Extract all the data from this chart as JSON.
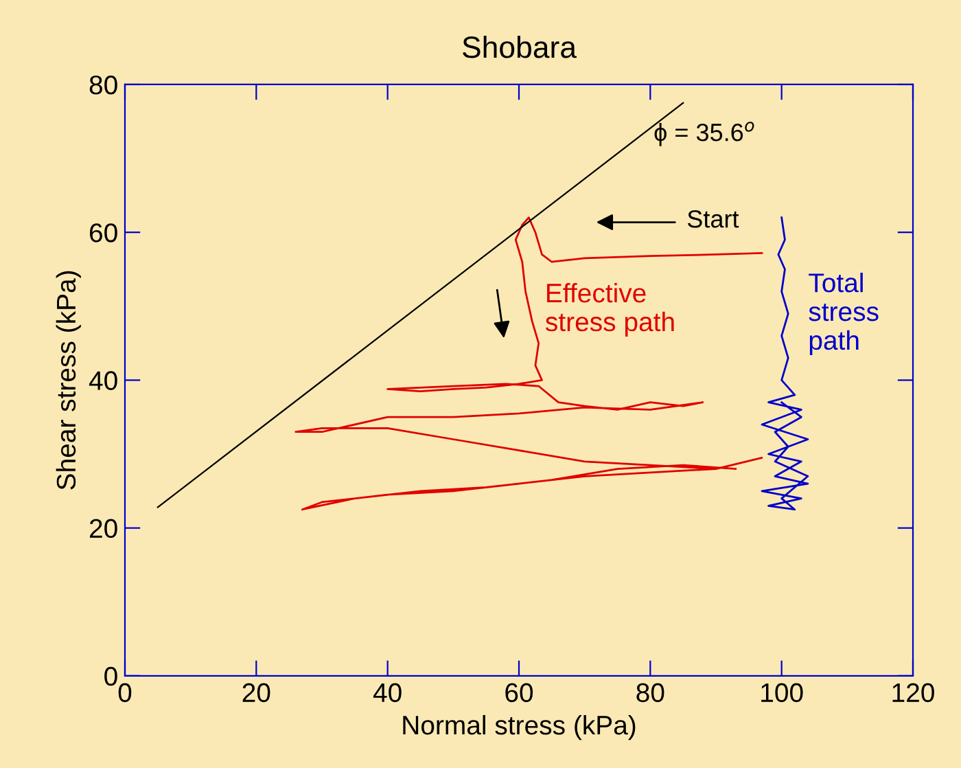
{
  "chart_data": {
    "type": "line",
    "title": "Shobara",
    "xlabel": "Normal stress (kPa)",
    "ylabel": "Shear stress (kPa)",
    "xlim": [
      0,
      120
    ],
    "xticks": [
      0,
      20,
      40,
      60,
      80,
      100,
      120
    ],
    "ylim": [
      0,
      80
    ],
    "yticks": [
      0,
      20,
      40,
      60,
      80
    ],
    "grid": false,
    "marker": "none",
    "line_style": "solid",
    "series": [
      {
        "color": "#e00000",
        "x": [
          97,
          90,
          80,
          70,
          65,
          63.5,
          62.5,
          61.5,
          60.5,
          59.5,
          60.5,
          61,
          62,
          63,
          62.5,
          63.5,
          60,
          55,
          50,
          45,
          40,
          50,
          58,
          63,
          66,
          70,
          75,
          80,
          85,
          88,
          80,
          70,
          60,
          50,
          40,
          30,
          26,
          30,
          40,
          50,
          60,
          70,
          80,
          90,
          97,
          90,
          80,
          70,
          60,
          50,
          40,
          30,
          27,
          35,
          45,
          55,
          65,
          75,
          85,
          93
        ],
        "values": [
          57.2,
          57,
          56.8,
          56.5,
          56,
          57,
          60,
          62,
          61,
          59,
          56,
          52,
          48,
          45,
          42,
          40,
          39.5,
          39,
          38.8,
          38.5,
          38.8,
          39.2,
          39.5,
          39.2,
          37,
          36.5,
          36,
          37,
          36.5,
          37,
          36,
          36.3,
          35.5,
          35,
          35,
          33,
          33,
          33.5,
          33.5,
          32,
          30.5,
          29,
          28.5,
          28,
          29.5,
          28,
          27.5,
          27,
          26,
          25,
          24.5,
          23.5,
          22.5,
          24,
          25,
          25.5,
          26.5,
          28,
          28.5,
          28
        ]
      },
      {
        "color": "#0000cc",
        "x": [
          100,
          100.5,
          99.5,
          100.5,
          100,
          101,
          100,
          101,
          100,
          102,
          98,
          103,
          97,
          104,
          98,
          103,
          99,
          104,
          97,
          103,
          98,
          102,
          100,
          104,
          99,
          101,
          99,
          103,
          100
        ],
        "values": [
          62,
          59,
          57,
          55,
          52,
          49,
          46,
          43,
          40,
          38,
          37,
          36,
          34,
          32,
          30,
          29,
          27,
          26,
          25,
          24,
          23,
          22.5,
          24,
          27,
          29,
          31,
          33,
          35,
          37
        ]
      },
      {
        "color": "#000000",
        "x": [
          5,
          85
        ],
        "values": [
          22.8,
          77.5
        ]
      }
    ],
    "annotations": [
      {
        "text": "ϕ = 35.6$^{o}$",
        "x": 80.5,
        "y": 73.3
      },
      "Start",
      "Effective\nstress path",
      "Total\nstress\npath"
    ]
  }
}
